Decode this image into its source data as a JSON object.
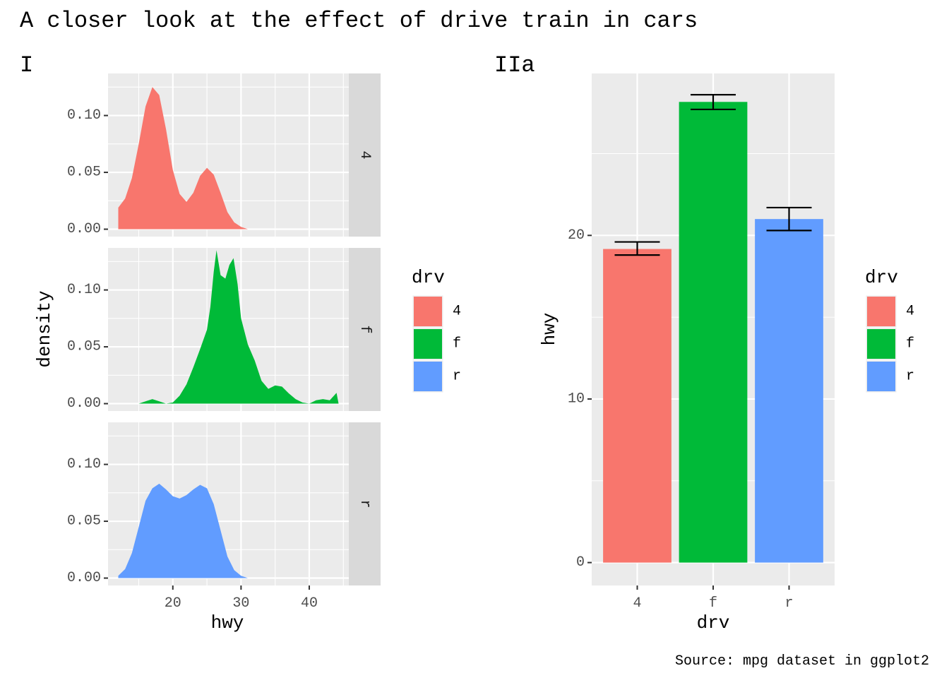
{
  "title": "A closer look at the effect of drive train in cars",
  "caption": "Source: mpg dataset in ggplot2",
  "legend": {
    "title": "drv",
    "items": [
      {
        "label": "4",
        "color": "#F8766D"
      },
      {
        "label": "f",
        "color": "#00BA38"
      },
      {
        "label": "r",
        "color": "#619CFF"
      }
    ]
  },
  "chart_data": [
    {
      "type": "area",
      "tag": "I",
      "xlabel": "hwy",
      "ylabel": "density",
      "xlim": [
        10.5,
        45.8
      ],
      "ylim": [
        -0.0065,
        0.137
      ],
      "x_ticks": [
        20,
        30,
        40
      ],
      "y_ticks": [
        0.0,
        0.05,
        0.1
      ],
      "y_tick_labels": [
        "0.00",
        "0.05",
        "0.10"
      ],
      "facets": [
        {
          "strip": "4",
          "color": "#F8766D",
          "points": [
            [
              12,
              0.019
            ],
            [
              13,
              0.027
            ],
            [
              14,
              0.045
            ],
            [
              15,
              0.075
            ],
            [
              16,
              0.108
            ],
            [
              17,
              0.125
            ],
            [
              18,
              0.118
            ],
            [
              19,
              0.088
            ],
            [
              20,
              0.052
            ],
            [
              21,
              0.031
            ],
            [
              22,
              0.024
            ],
            [
              23,
              0.032
            ],
            [
              24,
              0.047
            ],
            [
              25,
              0.054
            ],
            [
              26,
              0.048
            ],
            [
              27,
              0.032
            ],
            [
              28,
              0.015
            ],
            [
              29,
              0.006
            ],
            [
              30,
              0.002
            ],
            [
              31,
              0.0
            ]
          ]
        },
        {
          "strip": "f",
          "color": "#00BA38",
          "points": [
            [
              15,
              0.0
            ],
            [
              16,
              0.002
            ],
            [
              17,
              0.004
            ],
            [
              18,
              0.002
            ],
            [
              19,
              0.0
            ],
            [
              20,
              0.001
            ],
            [
              21,
              0.007
            ],
            [
              22,
              0.017
            ],
            [
              23,
              0.032
            ],
            [
              24,
              0.048
            ],
            [
              25,
              0.065
            ],
            [
              25.5,
              0.085
            ],
            [
              26,
              0.116
            ],
            [
              26.4,
              0.135
            ],
            [
              27,
              0.113
            ],
            [
              27.7,
              0.11
            ],
            [
              28.3,
              0.122
            ],
            [
              28.9,
              0.128
            ],
            [
              29.5,
              0.105
            ],
            [
              30,
              0.075
            ],
            [
              31,
              0.052
            ],
            [
              32,
              0.038
            ],
            [
              33,
              0.02
            ],
            [
              34,
              0.013
            ],
            [
              35,
              0.016
            ],
            [
              36,
              0.015
            ],
            [
              37,
              0.009
            ],
            [
              38,
              0.004
            ],
            [
              39,
              0.001
            ],
            [
              40,
              0.0
            ],
            [
              41,
              0.003
            ],
            [
              42,
              0.004
            ],
            [
              43,
              0.003
            ],
            [
              44,
              0.0095
            ],
            [
              44.3,
              0.0
            ]
          ]
        },
        {
          "strip": "r",
          "color": "#619CFF",
          "points": [
            [
              12,
              0.002
            ],
            [
              13,
              0.008
            ],
            [
              14,
              0.022
            ],
            [
              15,
              0.045
            ],
            [
              16,
              0.068
            ],
            [
              17,
              0.079
            ],
            [
              18,
              0.083
            ],
            [
              19,
              0.078
            ],
            [
              20,
              0.072
            ],
            [
              21,
              0.07
            ],
            [
              22,
              0.073
            ],
            [
              23,
              0.078
            ],
            [
              24,
              0.082
            ],
            [
              25,
              0.079
            ],
            [
              26,
              0.065
            ],
            [
              27,
              0.042
            ],
            [
              28,
              0.019
            ],
            [
              29,
              0.007
            ],
            [
              30,
              0.002
            ],
            [
              31,
              0.0
            ]
          ]
        }
      ]
    },
    {
      "type": "bar",
      "tag": "IIa",
      "xlabel": "drv",
      "ylabel": "hwy",
      "categories": [
        "4",
        "f",
        "r"
      ],
      "values": [
        19.17,
        28.16,
        21.0
      ],
      "error_low": [
        18.8,
        27.7,
        20.3
      ],
      "error_high": [
        19.6,
        28.6,
        21.7
      ],
      "colors": [
        "#F8766D",
        "#00BA38",
        "#619CFF"
      ],
      "ylim": [
        -1.4,
        29.9
      ],
      "y_ticks": [
        0,
        10,
        20
      ],
      "y_tick_labels": [
        "0",
        "10",
        "20"
      ]
    }
  ]
}
